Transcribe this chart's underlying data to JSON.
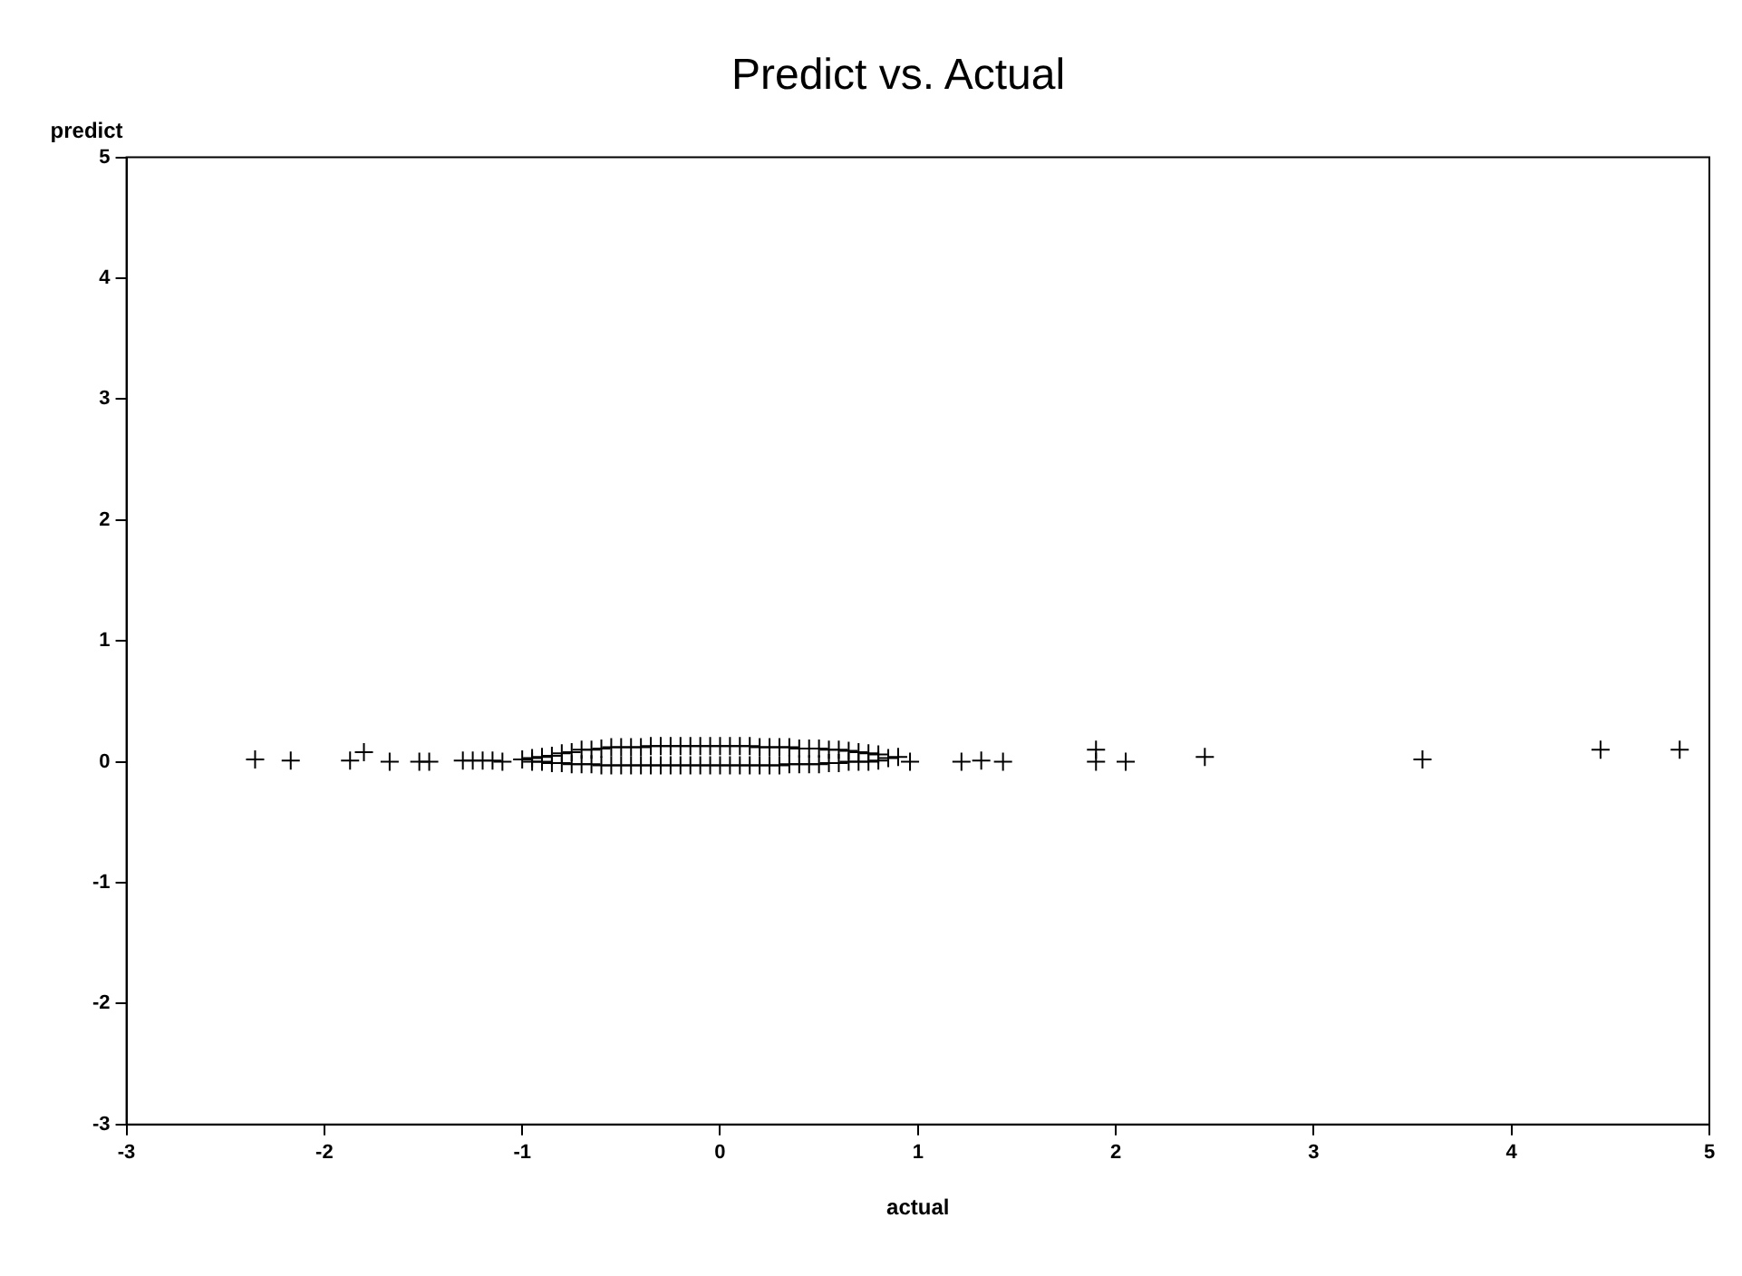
{
  "chart_data": {
    "type": "scatter",
    "title": "Predict vs. Actual",
    "xlabel": "actual",
    "ylabel": "predict",
    "xlim": [
      -3,
      5
    ],
    "xticks": [
      -3,
      -2,
      -1,
      0,
      1,
      2,
      3,
      4,
      5
    ],
    "ylim": [
      -3,
      5
    ],
    "yticks": [
      -3,
      -2,
      -1,
      0,
      1,
      2,
      3,
      4,
      5
    ],
    "grid": false,
    "legend": false,
    "marker": "cross",
    "series": [
      {
        "color": "#000000",
        "x": [
          -2.35,
          -2.17,
          -1.87,
          -1.8,
          -1.67,
          -1.52,
          -1.47,
          -1.3,
          -1.25,
          -1.2,
          -1.15,
          -1.1,
          -1.0,
          -0.95,
          -0.95,
          -0.9,
          -0.9,
          -0.85,
          -0.85,
          -0.8,
          -0.8,
          -0.75,
          -0.75,
          -0.7,
          -0.7,
          -0.65,
          -0.65,
          -0.6,
          -0.6,
          -0.55,
          -0.55,
          -0.5,
          -0.5,
          -0.45,
          -0.45,
          -0.4,
          -0.4,
          -0.35,
          -0.35,
          -0.3,
          -0.3,
          -0.25,
          -0.25,
          -0.2,
          -0.2,
          -0.15,
          -0.15,
          -0.1,
          -0.1,
          -0.05,
          -0.05,
          0.0,
          0.0,
          0.05,
          0.05,
          0.1,
          0.1,
          0.15,
          0.15,
          0.2,
          0.2,
          0.25,
          0.25,
          0.3,
          0.3,
          0.35,
          0.35,
          0.4,
          0.4,
          0.45,
          0.45,
          0.5,
          0.5,
          0.55,
          0.55,
          0.6,
          0.6,
          0.65,
          0.65,
          0.7,
          0.7,
          0.75,
          0.75,
          0.8,
          0.8,
          0.85,
          0.9,
          0.96,
          1.22,
          1.32,
          1.43,
          1.9,
          1.9,
          2.05,
          2.45,
          3.55,
          4.45,
          4.85
        ],
        "values": [
          0.02,
          0.01,
          0.01,
          0.08,
          0.0,
          0.0,
          0.0,
          0.01,
          0.01,
          0.01,
          0.01,
          0.0,
          0.02,
          0.0,
          0.03,
          0.0,
          0.04,
          -0.01,
          0.05,
          -0.01,
          0.07,
          -0.02,
          0.08,
          -0.02,
          0.1,
          -0.02,
          0.1,
          -0.03,
          0.11,
          -0.03,
          0.12,
          -0.03,
          0.12,
          -0.03,
          0.12,
          -0.03,
          0.12,
          -0.03,
          0.13,
          -0.03,
          0.13,
          -0.03,
          0.13,
          -0.03,
          0.13,
          -0.03,
          0.13,
          -0.03,
          0.13,
          -0.03,
          0.13,
          -0.03,
          0.13,
          -0.03,
          0.13,
          -0.03,
          0.13,
          -0.03,
          0.13,
          -0.03,
          0.12,
          -0.03,
          0.12,
          -0.03,
          0.12,
          -0.02,
          0.12,
          -0.02,
          0.11,
          -0.02,
          0.11,
          -0.02,
          0.11,
          -0.01,
          0.1,
          -0.01,
          0.1,
          0.0,
          0.09,
          0.0,
          0.08,
          0.0,
          0.07,
          0.01,
          0.06,
          0.03,
          0.04,
          0.0,
          0.0,
          0.01,
          0.0,
          0.1,
          0.0,
          0.0,
          0.04,
          0.02,
          0.1,
          0.1
        ]
      }
    ]
  }
}
